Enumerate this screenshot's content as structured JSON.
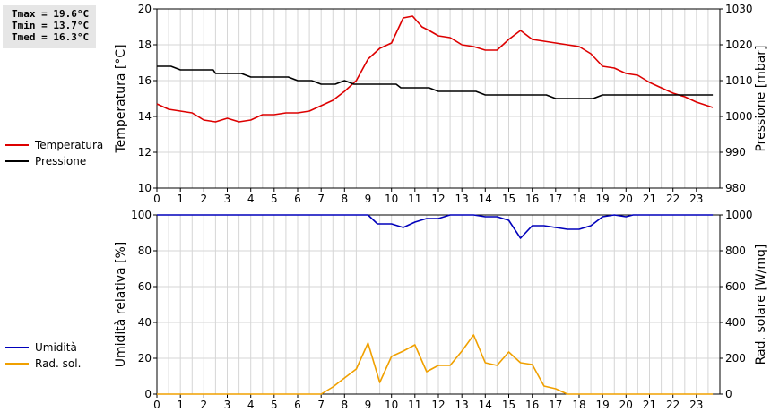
{
  "stats": {
    "tmax": "Tmax = 19.6°C",
    "tmin": "Tmin = 13.7°C",
    "tmed": "Tmed = 16.3°C"
  },
  "legend_top": [
    {
      "label": "Temperatura",
      "color": "#dd0000"
    },
    {
      "label": "Pressione",
      "color": "#000000"
    }
  ],
  "legend_bottom": [
    {
      "label": "Umidità",
      "color": "#0000bb"
    },
    {
      "label": "Rad. sol.",
      "color": "#f0a000"
    }
  ],
  "chart_data": [
    {
      "type": "line",
      "ylabel": "Temperatura [°C]",
      "y2label": "Pressione [mbar]",
      "ylim": [
        10,
        20
      ],
      "y2lim": [
        980,
        1030
      ],
      "yticks": [
        10,
        12,
        14,
        16,
        18,
        20
      ],
      "y2ticks": [
        980,
        990,
        1000,
        1010,
        1020,
        1030
      ],
      "xlim": [
        0,
        24
      ],
      "xticks": [
        0,
        1,
        2,
        3,
        4,
        5,
        6,
        7,
        8,
        9,
        10,
        11,
        12,
        13,
        14,
        15,
        16,
        17,
        18,
        19,
        20,
        21,
        22,
        23
      ],
      "grid": true,
      "series": [
        {
          "name": "Temperatura",
          "axis": "left",
          "color": "#dd0000",
          "x": [
            0,
            0.5,
            1,
            1.5,
            2,
            2.5,
            3,
            3.5,
            4,
            4.5,
            5,
            5.5,
            6,
            6.5,
            7,
            7.5,
            8,
            8.5,
            9,
            9.5,
            10,
            10.5,
            10.9,
            11.3,
            11.6,
            12,
            12.5,
            13,
            13.5,
            14,
            14.5,
            15,
            15.5,
            16,
            16.5,
            17,
            17.5,
            18,
            18.5,
            19,
            19.5,
            20,
            20.5,
            21,
            21.5,
            22,
            22.5,
            23,
            23.7
          ],
          "y": [
            14.7,
            14.4,
            14.3,
            14.2,
            13.8,
            13.7,
            13.9,
            13.7,
            13.8,
            14.1,
            14.1,
            14.2,
            14.2,
            14.3,
            14.6,
            14.9,
            15.4,
            16.0,
            17.2,
            17.8,
            18.1,
            19.5,
            19.6,
            19.0,
            18.8,
            18.5,
            18.4,
            18.0,
            17.9,
            17.7,
            17.7,
            18.3,
            18.8,
            18.3,
            18.2,
            18.1,
            18.0,
            17.9,
            17.5,
            16.8,
            16.7,
            16.4,
            16.3,
            15.9,
            15.6,
            15.3,
            15.1,
            14.8,
            14.5
          ]
        },
        {
          "name": "Pressione",
          "axis": "right",
          "color": "#000000",
          "x": [
            0,
            0.6,
            1.0,
            2.4,
            2.5,
            3.6,
            4.0,
            5.6,
            6.0,
            6.6,
            7.0,
            7.6,
            8.0,
            8.4,
            8.6,
            10.2,
            10.4,
            11.6,
            12.0,
            13.6,
            14.0,
            16.6,
            17.0,
            18.6,
            19.0,
            23.7
          ],
          "y": [
            1014,
            1014,
            1013,
            1013,
            1012,
            1012,
            1011,
            1011,
            1010,
            1010,
            1009,
            1009,
            1010,
            1009,
            1009,
            1009,
            1008,
            1008,
            1007,
            1007,
            1006,
            1006,
            1005,
            1005,
            1006,
            1006
          ]
        }
      ]
    },
    {
      "type": "line",
      "ylabel": "Umidità relativa [%]",
      "y2label": "Rad. solare [W/mq]",
      "ylim": [
        0,
        100
      ],
      "y2lim": [
        0,
        1000
      ],
      "yticks": [
        0,
        20,
        40,
        60,
        80,
        100
      ],
      "y2ticks": [
        0,
        200,
        400,
        600,
        800,
        1000
      ],
      "xlim": [
        0,
        24
      ],
      "xticks": [
        0,
        1,
        2,
        3,
        4,
        5,
        6,
        7,
        8,
        9,
        10,
        11,
        12,
        13,
        14,
        15,
        16,
        17,
        18,
        19,
        20,
        21,
        22,
        23
      ],
      "grid": true,
      "series": [
        {
          "name": "Umidità",
          "axis": "left",
          "color": "#0000bb",
          "x": [
            0,
            9.0,
            9.4,
            10.0,
            10.5,
            11.0,
            11.5,
            12.0,
            12.5,
            13.5,
            14.0,
            14.5,
            15.0,
            15.5,
            16.0,
            16.5,
            17.0,
            17.5,
            18.0,
            18.5,
            19.0,
            19.5,
            20.0,
            20.3,
            23.7
          ],
          "y": [
            100,
            100,
            95,
            95,
            93,
            96,
            98,
            98,
            100,
            100,
            99,
            99,
            97,
            87,
            94,
            94,
            93,
            92,
            92,
            94,
            99,
            100,
            99,
            100,
            100
          ]
        },
        {
          "name": "Rad. sol.",
          "axis": "right",
          "color": "#f0a000",
          "x": [
            0,
            7.0,
            7.5,
            8.0,
            8.5,
            9.0,
            9.5,
            10.0,
            10.5,
            11.0,
            11.5,
            12.0,
            12.5,
            13.0,
            13.5,
            14.0,
            14.5,
            15.0,
            15.5,
            16.0,
            16.5,
            17.0,
            17.5,
            18.0,
            23.7
          ],
          "y": [
            0,
            0,
            40,
            90,
            140,
            285,
            65,
            210,
            240,
            275,
            125,
            160,
            160,
            240,
            330,
            175,
            160,
            235,
            175,
            165,
            45,
            30,
            0,
            0,
            0
          ]
        }
      ]
    }
  ]
}
